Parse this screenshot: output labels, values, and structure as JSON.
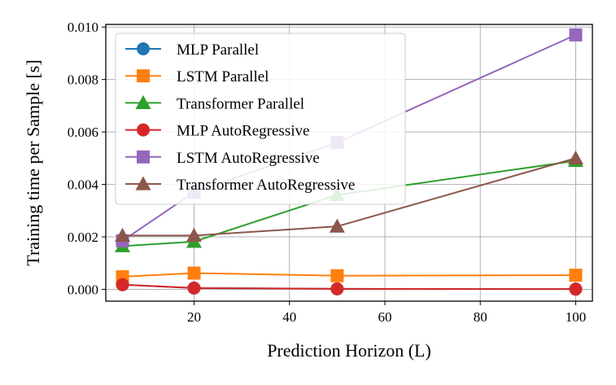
{
  "chart_data": {
    "type": "line",
    "title": "",
    "xlabel": "Prediction Horizon (L)",
    "ylabel": "Training time per Sample [s]",
    "xlim": [
      1.5,
      103.5
    ],
    "ylim": [
      -0.00045,
      0.0101
    ],
    "xticks": [
      20,
      40,
      60,
      80,
      100
    ],
    "xtick_labels": [
      "20",
      "40",
      "60",
      "80",
      "100"
    ],
    "yticks": [
      0.0,
      0.002,
      0.004,
      0.006,
      0.008,
      0.01
    ],
    "ytick_labels": [
      "0.000",
      "0.002",
      "0.004",
      "0.006",
      "0.008",
      "0.010"
    ],
    "grid": true,
    "legend_position": "upper-left",
    "x": [
      5,
      20,
      50,
      100
    ],
    "series": [
      {
        "name": "MLP Parallel",
        "color": "#1f77b4",
        "marker": "circle",
        "values": [
          0.00018,
          5e-05,
          2e-05,
          1e-05
        ]
      },
      {
        "name": "LSTM Parallel",
        "color": "#ff7f0e",
        "marker": "square",
        "values": [
          0.00048,
          0.00062,
          0.00052,
          0.00054
        ]
      },
      {
        "name": "Transformer Parallel",
        "color": "#2ca02c",
        "marker": "triangle",
        "values": [
          0.00165,
          0.00182,
          0.0036,
          0.0049
        ]
      },
      {
        "name": "MLP AutoRegressive",
        "color": "#d62728",
        "marker": "circle",
        "values": [
          0.00018,
          5e-05,
          2e-05,
          1e-05
        ]
      },
      {
        "name": "LSTM AutoRegressive",
        "color": "#9467bd",
        "marker": "square",
        "values": [
          0.00185,
          0.0037,
          0.0056,
          0.0097
        ]
      },
      {
        "name": "Transformer AutoRegressive",
        "color": "#8c564b",
        "marker": "triangle",
        "values": [
          0.00205,
          0.00205,
          0.0024,
          0.005
        ]
      }
    ]
  }
}
